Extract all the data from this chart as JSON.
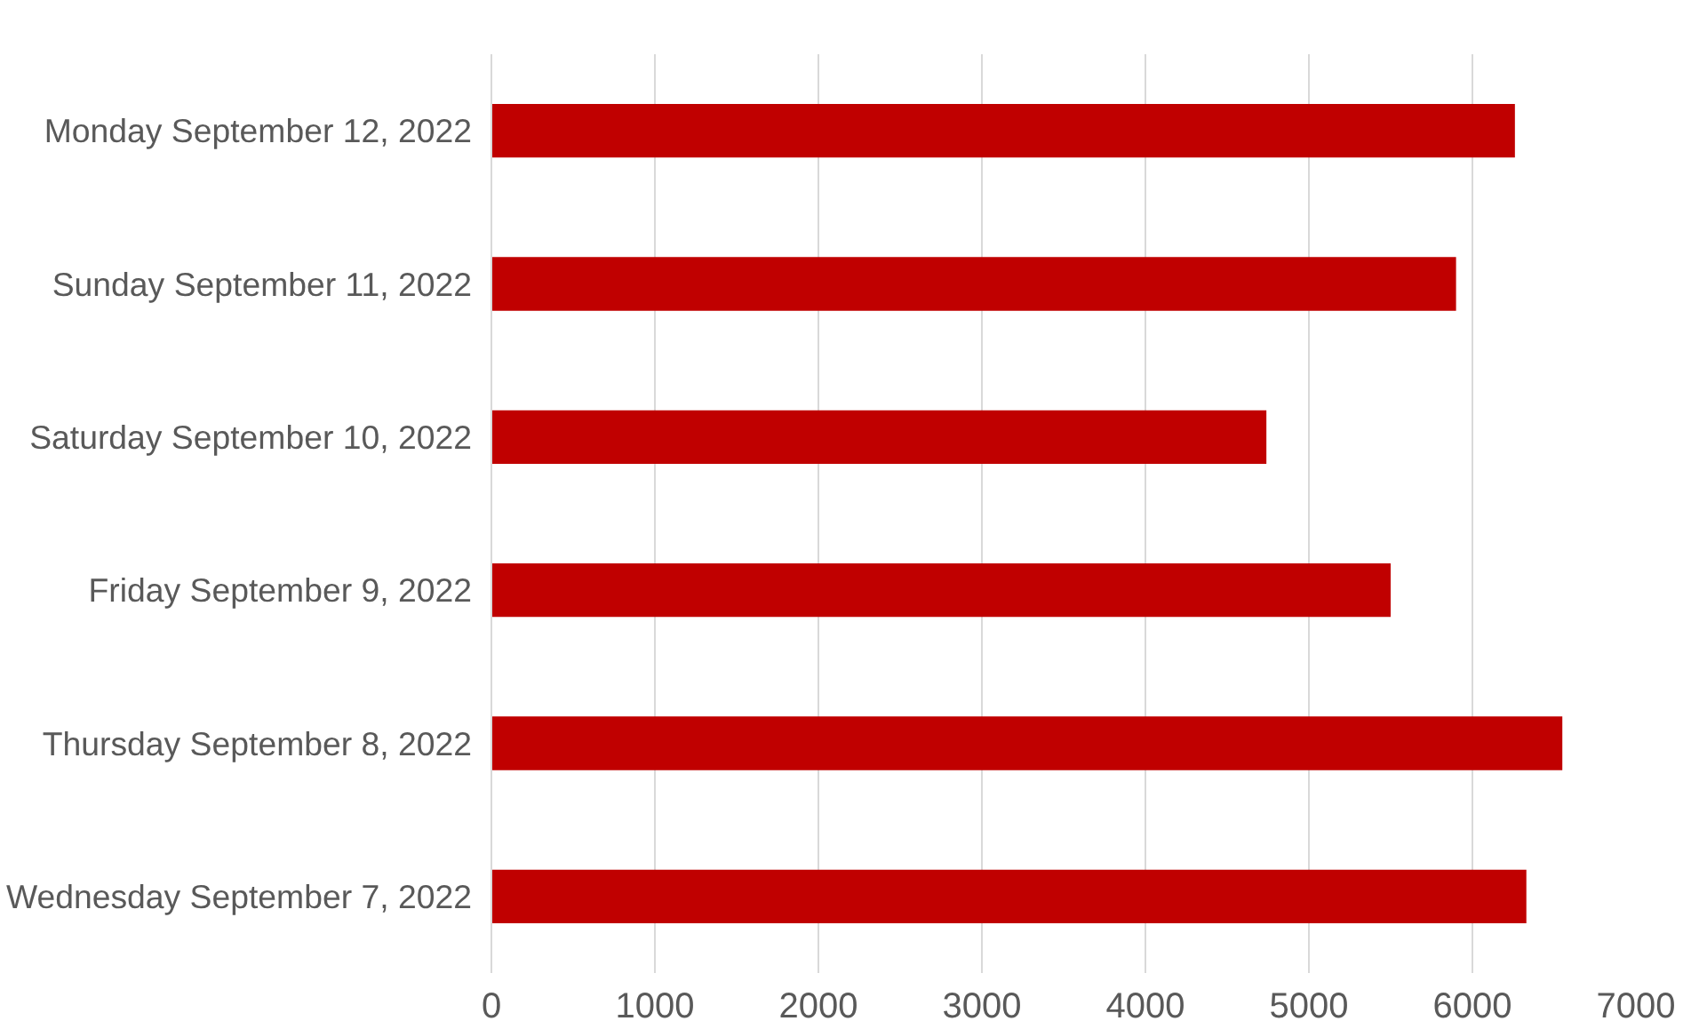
{
  "chart_data": {
    "type": "bar",
    "orientation": "horizontal",
    "categories": [
      "Monday September 12, 2022",
      "Sunday September 11, 2022",
      "Saturday September 10, 2022",
      "Friday September 9, 2022",
      "Thursday September 8, 2022",
      "Wednesday September 7, 2022"
    ],
    "values": [
      6260,
      5900,
      4740,
      5500,
      6550,
      6330
    ],
    "color": "#c00000",
    "xlim": [
      0,
      7000
    ],
    "xticks": [
      0,
      1000,
      2000,
      3000,
      4000,
      5000,
      6000,
      7000
    ],
    "grid": "x"
  }
}
